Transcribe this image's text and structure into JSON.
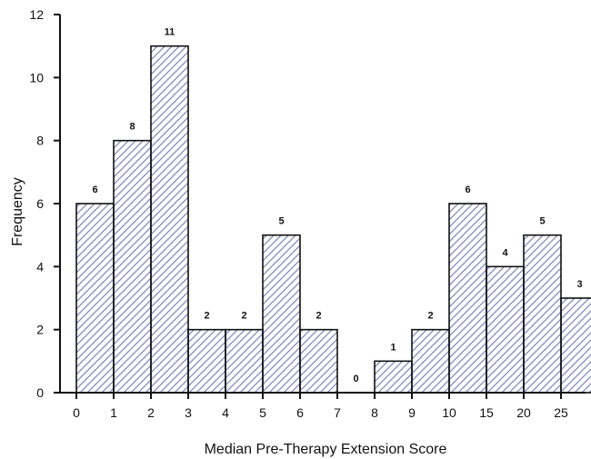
{
  "chart_data": {
    "type": "bar",
    "title": "",
    "xlabel": "Median Pre-Therapy Extension Score",
    "ylabel": "Frequency",
    "x_edges": [
      "0",
      "1",
      "2",
      "3",
      "4",
      "5",
      "6",
      "7",
      "8",
      "9",
      "10",
      "15",
      "20",
      "25",
      "30"
    ],
    "categories": [
      "0-1",
      "1-2",
      "2-3",
      "3-4",
      "4-5",
      "5-6",
      "6-7",
      "7-8",
      "8-9",
      "9-10",
      "10-15",
      "15-20",
      "20-25",
      "25-30"
    ],
    "values": [
      6,
      8,
      11,
      2,
      2,
      5,
      2,
      0,
      1,
      2,
      6,
      4,
      5,
      3
    ],
    "data_labels": [
      "6",
      "8",
      "11",
      "2",
      "2",
      "5",
      "2",
      "0",
      "1",
      "2",
      "6",
      "4",
      "5",
      "3"
    ],
    "ylim": [
      0,
      12
    ],
    "yticks": [
      0,
      2,
      4,
      6,
      8,
      10,
      12
    ],
    "bar_fill": "hatched",
    "hatch_color": "#7b86b8",
    "bar_edge_color": "#111111",
    "grid": false,
    "legend": "none"
  }
}
